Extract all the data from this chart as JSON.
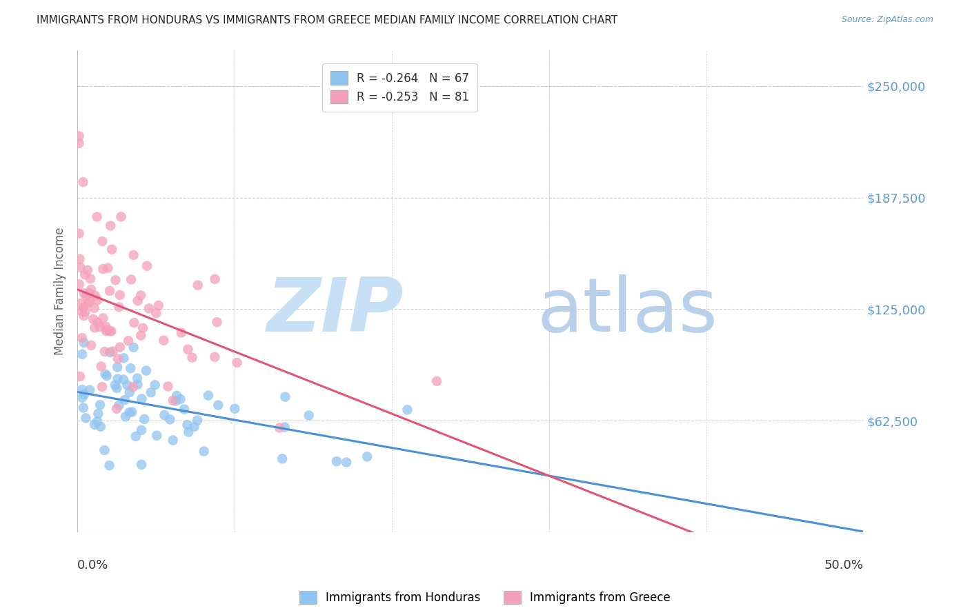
{
  "title": "IMMIGRANTS FROM HONDURAS VS IMMIGRANTS FROM GREECE MEDIAN FAMILY INCOME CORRELATION CHART",
  "source": "Source: ZipAtlas.com",
  "ylabel": "Median Family Income",
  "ytick_labels": [
    "$250,000",
    "$187,500",
    "$125,000",
    "$62,500"
  ],
  "ytick_values": [
    250000,
    187500,
    125000,
    62500
  ],
  "ylim": [
    0,
    270000
  ],
  "xlim": [
    0.0,
    0.5
  ],
  "legend_entry1": "R = -0.264   N = 67",
  "legend_entry2": "R = -0.253   N = 81",
  "color_honduras": "#90c4f0",
  "color_greece": "#f4a0b8",
  "color_honduras_line": "#4a90d9",
  "color_greece_line": "#e05575",
  "color_ytick": "#5b9bd5",
  "color_grid": "#cccccc",
  "watermark_zip": "#c8e0f5",
  "watermark_atlas": "#b8d0ea",
  "background_color": "#ffffff",
  "title_fontsize": 11,
  "source_fontsize": 9
}
